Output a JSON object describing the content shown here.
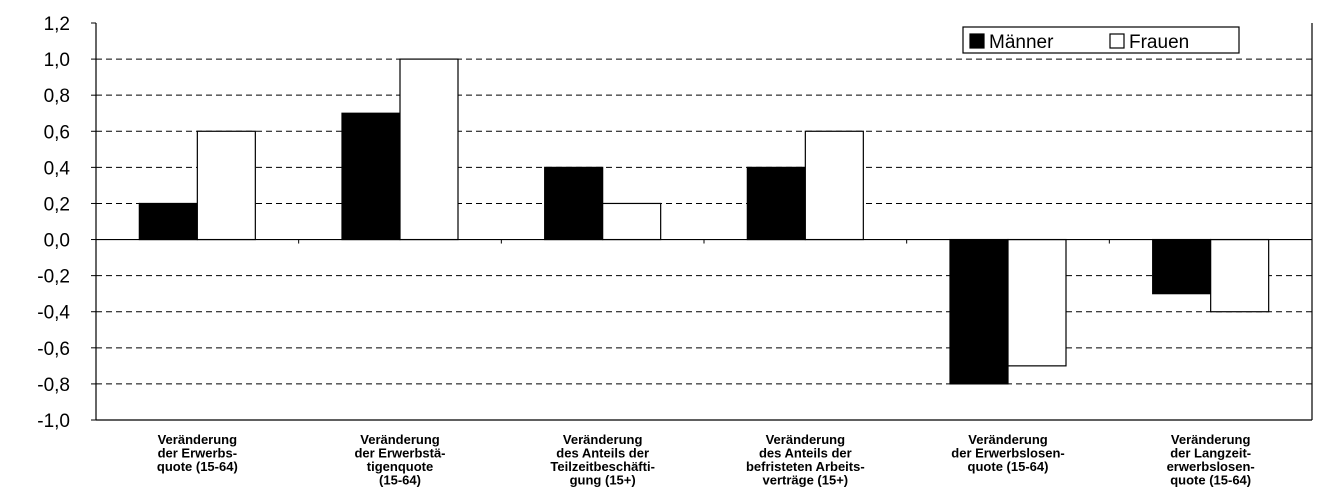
{
  "chart_data": {
    "type": "bar",
    "categories": [
      [
        "Veränderung",
        "der Erwerbs-",
        "quote (15-64)"
      ],
      [
        "Veränderung",
        "der Erwerbstä-",
        "tigenquote",
        "(15-64)"
      ],
      [
        "Veränderung",
        "des Anteils der",
        "Teilzeitbeschäfti-",
        "gung (15+)"
      ],
      [
        "Veränderung",
        "des Anteils der",
        "befristeten Arbeits-",
        "verträge (15+)"
      ],
      [
        "Veränderung",
        "der Erwerbslosen-",
        "quote (15-64)"
      ],
      [
        "Veränderung",
        "der Langzeit-",
        "erwerbslosen-",
        "quote (15-64)"
      ]
    ],
    "series": [
      {
        "name": "Männer",
        "color": "#000000",
        "values": [
          0.2,
          0.7,
          0.4,
          0.4,
          -0.8,
          -0.3
        ]
      },
      {
        "name": "Frauen",
        "color": "#ffffff",
        "values": [
          0.6,
          1.0,
          0.2,
          0.6,
          -0.7,
          -0.4
        ]
      }
    ],
    "yticks": [
      "1,2",
      "1,0",
      "0,8",
      "0,6",
      "0,4",
      "0,2",
      "0,0",
      "-0,2",
      "-0,4",
      "-0,6",
      "-0,8",
      "-1,0"
    ],
    "ylim": [
      -1.0,
      1.2
    ],
    "grid": true,
    "legend_position": "top-right",
    "title": "",
    "xlabel": "",
    "ylabel": ""
  }
}
